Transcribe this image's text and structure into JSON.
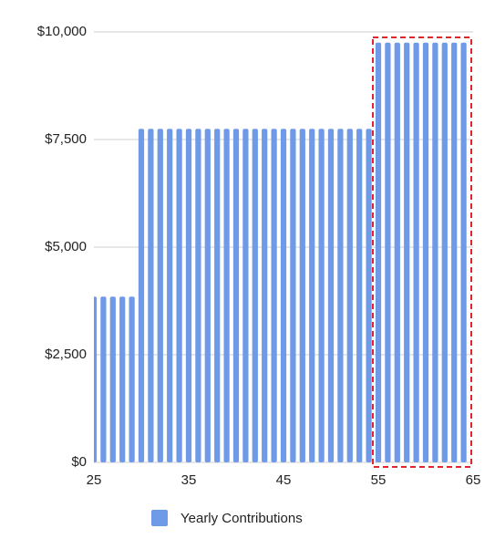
{
  "chart_data": {
    "type": "bar",
    "x": [
      25,
      26,
      27,
      28,
      29,
      30,
      31,
      32,
      33,
      34,
      35,
      36,
      37,
      38,
      39,
      40,
      41,
      42,
      43,
      44,
      45,
      46,
      47,
      48,
      49,
      50,
      51,
      52,
      53,
      54,
      55,
      56,
      57,
      58,
      59,
      60,
      61,
      62,
      63,
      64
    ],
    "series": [
      {
        "name": "Yearly Contributions",
        "color": "#6f9ae8",
        "values": [
          3850,
          3850,
          3850,
          3850,
          3850,
          7750,
          7750,
          7750,
          7750,
          7750,
          7750,
          7750,
          7750,
          7750,
          7750,
          7750,
          7750,
          7750,
          7750,
          7750,
          7750,
          7750,
          7750,
          7750,
          7750,
          7750,
          7750,
          7750,
          7750,
          7750,
          9750,
          9750,
          9750,
          9750,
          9750,
          9750,
          9750,
          9750,
          9750,
          9750
        ]
      }
    ],
    "xlim": [
      25,
      65
    ],
    "xticks": [
      25,
      35,
      45,
      55,
      65
    ],
    "ylim": [
      0,
      10000
    ],
    "yticks": [
      {
        "value": 0,
        "label": "$0"
      },
      {
        "value": 2500,
        "label": "$2,500"
      },
      {
        "value": 5000,
        "label": "$5,000"
      },
      {
        "value": 7500,
        "label": "$7,500"
      },
      {
        "value": 10000,
        "label": "$10,000"
      }
    ],
    "grid": true
  }
}
